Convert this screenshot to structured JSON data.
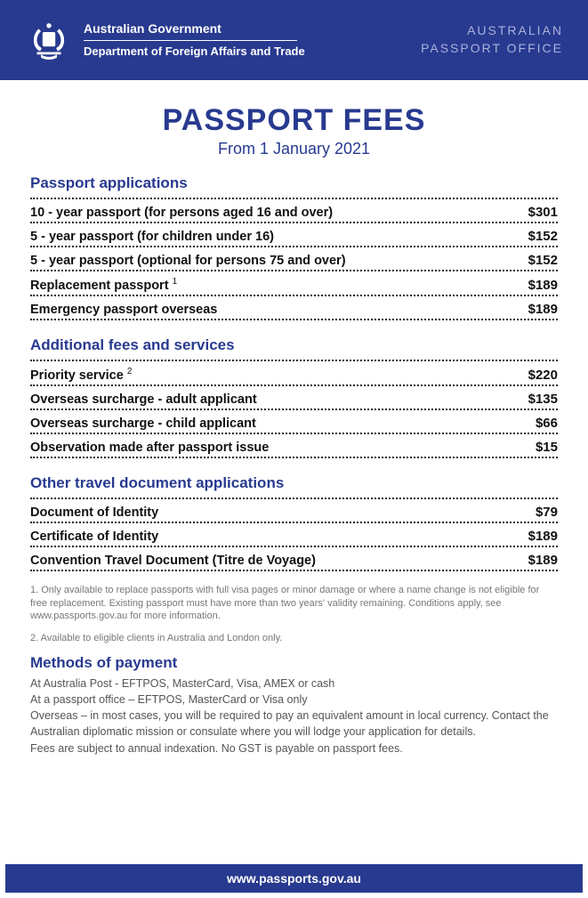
{
  "header": {
    "gov_line1": "Australian Government",
    "gov_line2": "Department of Foreign Affairs and Trade",
    "office_line1": "AUSTRALIAN",
    "office_line2": "PASSPORT OFFICE",
    "brand_color": "#283a8f"
  },
  "title": "PASSPORT FEES",
  "subtitle": "From 1 January 2021",
  "sections": [
    {
      "heading": "Passport applications",
      "rows": [
        {
          "label": "10 - year passport (for persons aged 16 and over)",
          "price": "$301",
          "sup": ""
        },
        {
          "label": "5 - year passport (for children under 16)",
          "price": "$152",
          "sup": ""
        },
        {
          "label": "5 - year passport (optional for persons 75 and over)",
          "price": "$152",
          "sup": ""
        },
        {
          "label": "Replacement passport ",
          "price": "$189",
          "sup": "1"
        },
        {
          "label": "Emergency passport overseas",
          "price": "$189",
          "sup": ""
        }
      ]
    },
    {
      "heading": "Additional fees and services",
      "rows": [
        {
          "label": "Priority service ",
          "price": "$220",
          "sup": "2"
        },
        {
          "label": "Overseas surcharge - adult applicant",
          "price": "$135",
          "sup": ""
        },
        {
          "label": "Overseas surcharge - child applicant",
          "price": "$66",
          "sup": ""
        },
        {
          "label": "Observation made after passport issue",
          "price": "$15",
          "sup": ""
        }
      ]
    },
    {
      "heading": "Other travel document applications",
      "rows": [
        {
          "label": "Document of Identity",
          "price": "$79",
          "sup": ""
        },
        {
          "label": "Certificate of Identity",
          "price": "$189",
          "sup": ""
        },
        {
          "label": "Convention Travel Document (Titre de Voyage)",
          "price": "$189",
          "sup": ""
        }
      ]
    }
  ],
  "footnotes": [
    "1. Only available to replace passports with full visa pages or minor damage or where a name change is not eligible for free replacement. Existing passport must have more than two years' validity remaining. Conditions apply, see www.passports.gov.au for more information.",
    "2. Available to eligible clients in Australia and London only."
  ],
  "methods": {
    "heading": "Methods of payment",
    "lines": [
      "At Australia Post - EFTPOS, MasterCard, Visa, AMEX or cash",
      "At a passport office – EFTPOS, MasterCard or Visa only",
      "Overseas – in most cases, you will be required to pay an equivalent amount in local currency. Contact the Australian diplomatic mission or consulate where you will lodge your application for details.",
      "Fees are subject to annual indexation. No GST is payable on passport fees."
    ]
  },
  "footer": "www.passports.gov.au"
}
